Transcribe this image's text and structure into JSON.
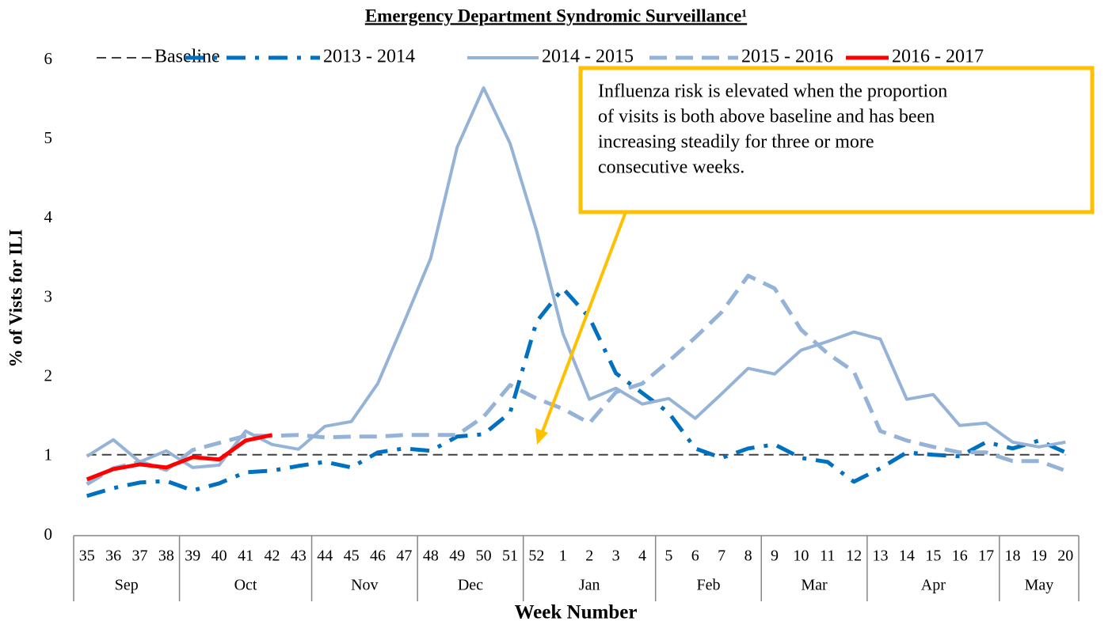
{
  "chart_data": {
    "type": "line",
    "title": "Emergency Department Syndromic Surveillance¹",
    "x_label": "Week Number",
    "y_label": "% of Vists for ILI",
    "categories": [
      "35",
      "36",
      "37",
      "38",
      "39",
      "40",
      "41",
      "42",
      "43",
      "44",
      "45",
      "46",
      "47",
      "48",
      "49",
      "50",
      "51",
      "52",
      "1",
      "2",
      "3",
      "4",
      "5",
      "6",
      "7",
      "8",
      "9",
      "10",
      "11",
      "12",
      "13",
      "14",
      "15",
      "16",
      "17",
      "18",
      "19",
      "20"
    ],
    "category_groups": [
      "Sep",
      null,
      null,
      null,
      "Oct",
      null,
      null,
      null,
      null,
      "Nov",
      null,
      null,
      null,
      "Dec",
      null,
      null,
      null,
      "Jan",
      null,
      null,
      null,
      null,
      "Feb",
      null,
      null,
      null,
      "Mar",
      null,
      null,
      null,
      "Apr",
      null,
      null,
      null,
      null,
      "May",
      null,
      null
    ],
    "ylim": [
      0,
      6
    ],
    "yticks": [
      0,
      1,
      2,
      3,
      4,
      5,
      6
    ],
    "grid": false,
    "series": [
      {
        "name": "Baseline",
        "color": "#404040",
        "style": "dashed",
        "values": [
          1.02,
          1.02,
          1.02,
          1.02,
          1.02,
          1.02,
          1.02,
          1.02,
          1.02,
          1.02,
          1.02,
          1.02,
          1.02,
          1.02,
          1.02,
          1.02,
          1.02,
          1.02,
          1.02,
          1.02,
          1.02,
          1.02,
          1.02,
          1.02,
          1.02,
          1.02,
          1.02,
          1.02,
          1.02,
          1.02,
          1.02,
          1.02,
          1.02,
          1.02,
          1.02,
          1.02,
          1.02,
          1.02
        ]
      },
      {
        "name": "2013 - 2014",
        "color": "#0070c0",
        "style": "dash-dot",
        "values": [
          0.5,
          0.6,
          0.67,
          0.69,
          0.57,
          0.66,
          0.8,
          0.82,
          0.88,
          0.93,
          0.86,
          1.05,
          1.1,
          1.07,
          1.25,
          1.28,
          1.55,
          2.7,
          3.12,
          2.75,
          2.05,
          1.8,
          1.55,
          1.1,
          0.98,
          1.1,
          1.15,
          0.98,
          0.93,
          0.68,
          0.85,
          1.05,
          1.02,
          1.0,
          1.18,
          1.1,
          1.2,
          1.05
        ]
      },
      {
        "name": "2014 - 2015",
        "color": "#95b3d7",
        "style": "solid",
        "values": [
          1.0,
          1.21,
          0.93,
          1.07,
          0.86,
          0.89,
          1.32,
          1.15,
          1.09,
          1.38,
          1.44,
          1.92,
          2.7,
          3.5,
          4.9,
          5.65,
          4.95,
          3.85,
          2.55,
          1.72,
          1.86,
          1.66,
          1.73,
          1.48,
          1.79,
          2.11,
          2.04,
          2.34,
          2.45,
          2.57,
          2.48,
          1.72,
          1.78,
          1.39,
          1.42,
          1.18,
          1.12,
          1.18
        ]
      },
      {
        "name": "2015 - 2016",
        "color": "#95b3d7",
        "style": "long-dash",
        "values": [
          0.65,
          0.85,
          0.93,
          0.83,
          1.08,
          1.17,
          1.26,
          1.26,
          1.27,
          1.24,
          1.25,
          1.25,
          1.27,
          1.27,
          1.27,
          1.5,
          1.9,
          1.73,
          1.6,
          1.42,
          1.81,
          1.92,
          2.2,
          2.5,
          2.82,
          3.28,
          3.12,
          2.6,
          2.3,
          2.07,
          1.32,
          1.2,
          1.12,
          1.05,
          1.05,
          0.94,
          0.94,
          0.82
        ]
      },
      {
        "name": "2016 - 2017",
        "color": "#ff0000",
        "style": "solid-bold",
        "values": [
          0.71,
          0.84,
          0.9,
          0.86,
          0.99,
          0.96,
          1.2,
          1.27,
          null,
          null,
          null,
          null,
          null,
          null,
          null,
          null,
          null,
          null,
          null,
          null,
          null,
          null,
          null,
          null,
          null,
          null,
          null,
          null,
          null,
          null,
          null,
          null,
          null,
          null,
          null,
          null,
          null,
          null
        ]
      }
    ],
    "annotation": {
      "lines": [
        "Influenza risk is elevated when the proportion",
        "of visits is both above baseline and has been",
        "increasing steadily for three or more",
        "consecutive weeks."
      ],
      "color": "#ffc000"
    }
  }
}
